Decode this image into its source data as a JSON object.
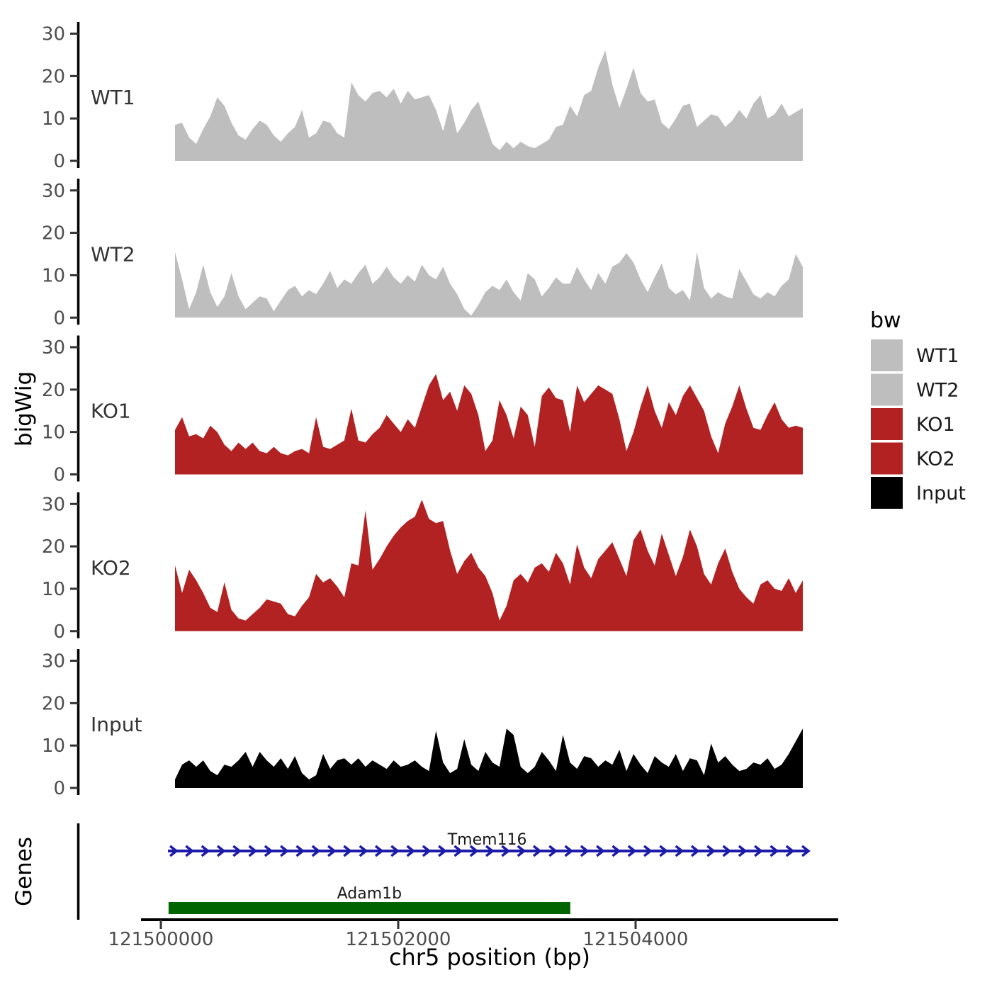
{
  "chart_data": {
    "type": "area",
    "title": "",
    "xlabel": "chr5 position (bp)",
    "ylabel": "bigWig",
    "genes_label": "Genes",
    "x_ticks": [
      121500000,
      121502000,
      121504000
    ],
    "x_tick_labels": [
      "121500000",
      "121502000",
      "121504000"
    ],
    "x_domain": [
      121499830,
      121505690
    ],
    "y_ticks": [
      0,
      10,
      20,
      30
    ],
    "ylim": [
      0,
      33
    ],
    "region": {
      "chrom": "chr5",
      "start": 121500120,
      "end": 121505410
    },
    "legend": {
      "title": "bw",
      "position": "right",
      "entries": [
        {
          "label": "WT1",
          "color": "#BEBEBE"
        },
        {
          "label": "WT2",
          "color": "#BEBEBE"
        },
        {
          "label": "KO1",
          "color": "#B22222"
        },
        {
          "label": "KO2",
          "color": "#B22222"
        },
        {
          "label": "Input",
          "color": "#000000"
        }
      ]
    },
    "tracks": [
      {
        "name": "WT1",
        "color": "#BEBEBE",
        "values": [
          8.5,
          9,
          5.5,
          4,
          7.5,
          10.5,
          15,
          13,
          9,
          6,
          5,
          7.5,
          9.5,
          8.5,
          6,
          4.5,
          6.5,
          8,
          12,
          5.5,
          6.5,
          9.5,
          9,
          6.5,
          5.5,
          18.5,
          15.5,
          14,
          16,
          16.5,
          15,
          17,
          13.5,
          16.5,
          14.5,
          15,
          15.5,
          12,
          7,
          13.5,
          6.5,
          9,
          12,
          14,
          9,
          4,
          2.5,
          4.5,
          3,
          4.5,
          3.5,
          3,
          4,
          5,
          8,
          8.5,
          13,
          10.5,
          15.5,
          16.5,
          22,
          26,
          18,
          12.5,
          17,
          22,
          16,
          14,
          14.5,
          9,
          7.5,
          10,
          13,
          13.5,
          8,
          9.5,
          11,
          10.5,
          8,
          9.5,
          12,
          10,
          13.5,
          15.5,
          10,
          11,
          13.5,
          10.5,
          11.5,
          12.5
        ]
      },
      {
        "name": "WT2",
        "color": "#BEBEBE",
        "values": [
          15.5,
          9,
          2,
          6,
          12.5,
          6,
          2.5,
          5,
          10.5,
          5,
          2,
          3.5,
          5,
          4.5,
          1.5,
          4,
          6.5,
          7.5,
          5,
          6.5,
          5.5,
          8,
          11,
          7,
          9,
          8,
          10.5,
          12.5,
          8,
          9.5,
          12,
          9.5,
          8,
          10,
          8.5,
          12.5,
          10,
          9,
          12,
          8,
          5.5,
          2,
          0.5,
          3,
          6,
          7.5,
          6.5,
          9,
          6,
          4,
          10.5,
          9,
          5,
          7,
          9.5,
          8,
          8,
          12,
          9,
          6.5,
          10.5,
          8,
          12,
          13,
          15.2,
          13,
          9,
          6,
          9.5,
          12.8,
          7,
          5.5,
          6.5,
          4,
          15.5,
          7,
          4.5,
          6,
          5,
          4.5,
          11.5,
          8.5,
          5.5,
          4.5,
          6,
          5,
          7.5,
          9,
          15,
          12
        ]
      },
      {
        "name": "KO1",
        "color": "#B22222",
        "values": [
          10.5,
          13.5,
          9,
          9.5,
          8.5,
          11.5,
          10,
          7,
          5.5,
          7.5,
          6,
          7.5,
          5.5,
          5,
          6.5,
          5,
          4.5,
          5.5,
          6,
          5,
          13.5,
          6.5,
          6,
          7,
          8,
          15.5,
          8,
          7.5,
          9.5,
          11,
          14,
          12,
          10,
          13,
          11,
          16,
          21,
          23.7,
          17.5,
          19.5,
          15,
          21,
          19,
          14,
          5.5,
          8,
          17.5,
          14,
          8.5,
          16,
          14,
          6.5,
          18.5,
          20.5,
          18,
          17.5,
          10,
          21,
          17,
          19,
          21,
          20,
          19,
          13,
          5.5,
          10,
          16,
          21,
          15,
          11,
          17,
          14,
          18.5,
          21,
          18,
          15,
          9,
          5,
          12,
          16,
          21,
          15.5,
          11,
          10.5,
          14,
          17,
          13,
          11,
          11.5,
          11
        ]
      },
      {
        "name": "KO2",
        "color": "#B22222",
        "values": [
          15.5,
          9,
          14.5,
          12,
          9,
          5.5,
          4.5,
          11.5,
          5,
          3,
          2.5,
          4,
          5.5,
          7.5,
          7,
          6.5,
          4,
          3.5,
          6,
          8,
          13.5,
          11.5,
          12.5,
          10.5,
          8,
          16,
          15.5,
          28.5,
          14.5,
          17,
          20,
          22.5,
          24.5,
          26,
          27,
          31,
          26.5,
          25.5,
          26,
          19,
          13.5,
          16.5,
          18.5,
          15,
          13,
          9,
          2.5,
          6,
          12,
          13.5,
          11.5,
          15,
          16,
          14,
          18.5,
          16,
          11,
          20.5,
          15,
          12.5,
          17,
          19,
          21,
          17,
          13,
          21.5,
          24,
          19,
          15.5,
          23,
          18,
          13,
          17.5,
          24,
          20,
          13.5,
          11,
          16,
          19.5,
          14,
          10,
          8,
          6.5,
          11,
          12,
          10,
          9.5,
          12.5,
          9,
          12
        ]
      },
      {
        "name": "Input",
        "color": "#000000",
        "values": [
          2,
          5.5,
          6.5,
          5,
          6.5,
          4,
          3,
          5.5,
          5,
          6.5,
          8.5,
          5,
          8.5,
          6.5,
          5,
          7,
          4.5,
          7.5,
          3.5,
          2,
          3,
          8,
          4.5,
          6.5,
          7,
          5.5,
          7,
          5,
          6.5,
          5.5,
          4.5,
          6.5,
          5,
          5.5,
          6.5,
          5,
          4,
          13.5,
          6,
          3.5,
          4.5,
          11.5,
          5.5,
          4,
          8.5,
          6,
          5,
          14,
          12.5,
          5,
          3.5,
          5,
          8.5,
          6.5,
          4,
          12.5,
          6,
          4.5,
          7.5,
          7,
          5,
          6.5,
          5.5,
          9,
          4,
          8,
          5.5,
          3.5,
          7.5,
          6,
          5,
          8,
          4,
          7,
          6.5,
          3,
          10.5,
          6,
          7.5,
          5.5,
          4,
          4.5,
          6,
          5.5,
          7,
          4.5,
          5.5,
          8,
          11,
          14
        ]
      }
    ],
    "genes": [
      {
        "name": "Tmem116",
        "start": 121500060,
        "end": 121505440,
        "strand": "+",
        "style": "arrow-line",
        "color": "#1C1CA8"
      },
      {
        "name": "Adam1b",
        "start": 121500065,
        "end": 121503450,
        "strand": "+",
        "style": "box",
        "color": "#006400"
      }
    ]
  }
}
